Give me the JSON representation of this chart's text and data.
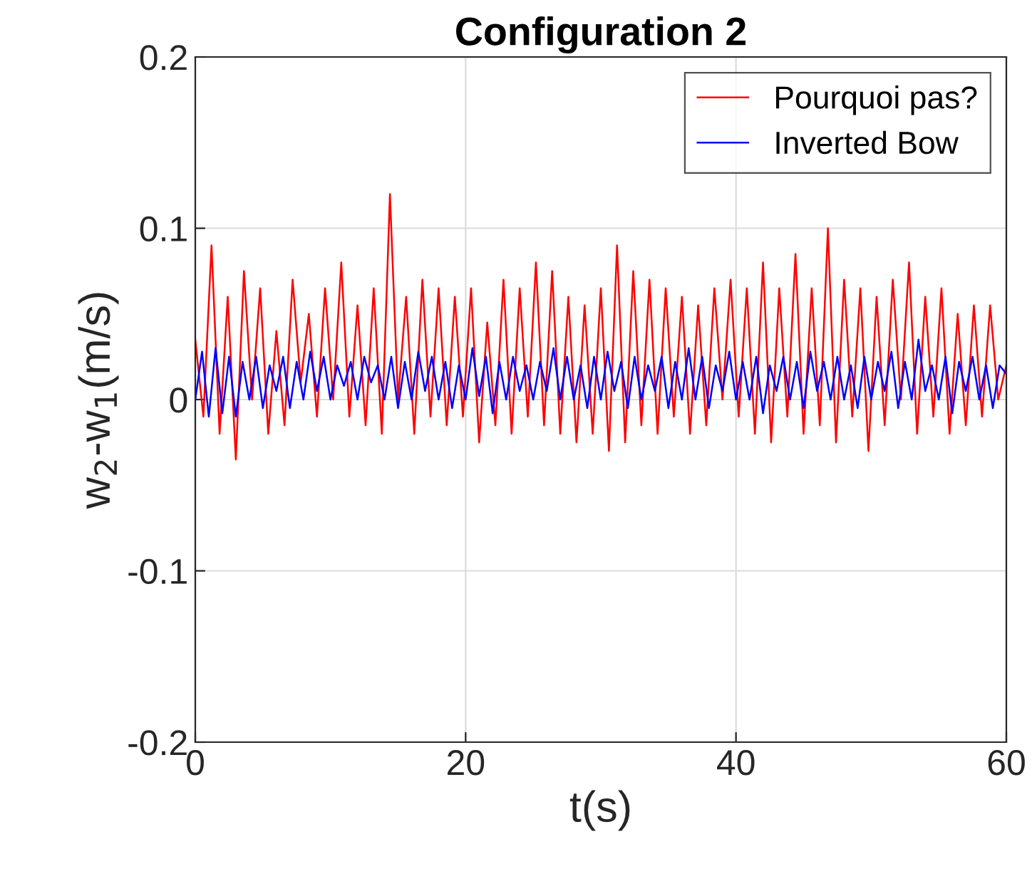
{
  "chart_data": {
    "type": "line",
    "title": "Configuration 2",
    "xlabel": "t(s)",
    "ylabel": "w$_{2}$-w$_{1}$(m/s)",
    "xlim": [
      0,
      60
    ],
    "xticks": [
      0,
      20,
      40,
      60
    ],
    "ylim": [
      -0.2,
      0.2
    ],
    "yticks": [
      -0.2,
      -0.1,
      0,
      0.1,
      0.2
    ],
    "grid": true,
    "legend": "top right",
    "marker": "none",
    "line_style": "solid",
    "series": [
      {
        "name": "Pourquoi pas?",
        "color": "#ff0000",
        "x": [
          0,
          0.6,
          1.2,
          1.8,
          2.4,
          3,
          3.6,
          4.2,
          4.8,
          5.4,
          6,
          6.6,
          7.2,
          7.8,
          8.4,
          9,
          9.6,
          10.2,
          10.8,
          11.4,
          12,
          12.6,
          13.2,
          13.8,
          14.4,
          15,
          15.6,
          16.2,
          16.8,
          17.4,
          18,
          18.6,
          19.2,
          19.8,
          20.4,
          21,
          21.6,
          22.2,
          22.8,
          23.4,
          24,
          24.6,
          25.2,
          25.8,
          26.4,
          27,
          27.6,
          28.2,
          28.8,
          29.4,
          30,
          30.6,
          31.2,
          31.8,
          32.4,
          33,
          33.6,
          34.2,
          34.8,
          35.4,
          36,
          36.6,
          37.2,
          37.8,
          38.4,
          39,
          39.6,
          40.2,
          40.8,
          41.4,
          42,
          42.6,
          43.2,
          43.8,
          44.4,
          45,
          45.6,
          46.2,
          46.8,
          47.4,
          48,
          48.6,
          49.2,
          49.8,
          50.4,
          51,
          51.6,
          52.2,
          52.8,
          53.4,
          54,
          54.6,
          55.2,
          55.8,
          56.4,
          57,
          57.6,
          58.2,
          58.8,
          59.4,
          60
        ],
        "values": [
          0.035,
          -0.01,
          0.09,
          -0.02,
          0.06,
          -0.035,
          0.075,
          0.0,
          0.065,
          -0.02,
          0.04,
          -0.015,
          0.07,
          0.01,
          0.05,
          -0.01,
          0.065,
          0.0,
          0.08,
          -0.01,
          0.055,
          -0.015,
          0.065,
          -0.02,
          0.12,
          0.0,
          0.06,
          -0.02,
          0.07,
          -0.01,
          0.065,
          -0.015,
          0.06,
          -0.01,
          0.065,
          -0.025,
          0.045,
          -0.015,
          0.07,
          -0.02,
          0.065,
          -0.01,
          0.08,
          -0.015,
          0.075,
          -0.02,
          0.06,
          -0.025,
          0.055,
          -0.02,
          0.065,
          -0.03,
          0.09,
          -0.025,
          0.075,
          -0.015,
          0.07,
          -0.02,
          0.065,
          -0.01,
          0.06,
          -0.02,
          0.055,
          -0.015,
          0.065,
          0.0,
          0.07,
          -0.01,
          0.065,
          -0.02,
          0.08,
          -0.025,
          0.065,
          -0.01,
          0.085,
          -0.02,
          0.065,
          -0.015,
          0.1,
          -0.025,
          0.07,
          -0.01,
          0.065,
          -0.03,
          0.06,
          -0.015,
          0.07,
          0.0,
          0.08,
          -0.02,
          0.06,
          -0.01,
          0.065,
          -0.02,
          0.05,
          -0.015,
          0.055,
          -0.01,
          0.055,
          0.0,
          0.02
        ]
      },
      {
        "name": "Inverted Bow",
        "color": "#0000ff",
        "x": [
          0,
          0.5,
          1,
          1.5,
          2,
          2.5,
          3,
          3.5,
          4,
          4.5,
          5,
          5.5,
          6,
          6.5,
          7,
          7.5,
          8,
          8.5,
          9,
          9.5,
          10,
          10.5,
          11,
          11.5,
          12,
          12.5,
          13,
          13.5,
          14,
          14.5,
          15,
          15.5,
          16,
          16.5,
          17,
          17.5,
          18,
          18.5,
          19,
          19.5,
          20,
          20.5,
          21,
          21.5,
          22,
          22.5,
          23,
          23.5,
          24,
          24.5,
          25,
          25.5,
          26,
          26.5,
          27,
          27.5,
          28,
          28.5,
          29,
          29.5,
          30,
          30.5,
          31,
          31.5,
          32,
          32.5,
          33,
          33.5,
          34,
          34.5,
          35,
          35.5,
          36,
          36.5,
          37,
          37.5,
          38,
          38.5,
          39,
          39.5,
          40,
          40.5,
          41,
          41.5,
          42,
          42.5,
          43,
          43.5,
          44,
          44.5,
          45,
          45.5,
          46,
          46.5,
          47,
          47.5,
          48,
          48.5,
          49,
          49.5,
          50,
          50.5,
          51,
          51.5,
          52,
          52.5,
          53,
          53.5,
          54,
          54.5,
          55,
          55.5,
          56,
          56.5,
          57,
          57.5,
          58,
          58.5,
          59,
          59.5,
          60
        ],
        "values": [
          0.0,
          0.028,
          -0.01,
          0.03,
          -0.008,
          0.025,
          -0.01,
          0.022,
          0.0,
          0.025,
          -0.005,
          0.02,
          0.005,
          0.025,
          -0.005,
          0.022,
          0.0,
          0.028,
          0.005,
          0.025,
          0.0,
          0.02,
          0.008,
          0.022,
          0.0,
          0.025,
          0.01,
          0.02,
          0.0,
          0.025,
          -0.005,
          0.022,
          0.0,
          0.028,
          0.005,
          0.025,
          0.0,
          0.022,
          -0.005,
          0.02,
          0.0,
          0.03,
          0.002,
          0.025,
          -0.008,
          0.022,
          0.0,
          0.025,
          0.005,
          0.02,
          0.0,
          0.022,
          0.005,
          0.03,
          0.0,
          0.025,
          0.0,
          0.02,
          -0.005,
          0.025,
          0.0,
          0.028,
          0.005,
          0.022,
          -0.005,
          0.025,
          0.0,
          0.02,
          0.005,
          0.025,
          -0.005,
          0.022,
          0.0,
          0.03,
          0.0,
          0.025,
          -0.005,
          0.02,
          0.005,
          0.028,
          0.0,
          0.022,
          0.0,
          0.025,
          -0.008,
          0.02,
          0.005,
          0.025,
          0.0,
          0.022,
          -0.005,
          0.028,
          0.005,
          0.022,
          0.0,
          0.025,
          0.0,
          0.02,
          -0.005,
          0.025,
          0.0,
          0.022,
          0.005,
          0.028,
          -0.005,
          0.022,
          0.0,
          0.035,
          0.005,
          0.02,
          0.0,
          0.025,
          -0.008,
          0.022,
          0.005,
          0.025,
          0.0,
          0.02,
          -0.005,
          0.02,
          0.015
        ]
      }
    ]
  }
}
